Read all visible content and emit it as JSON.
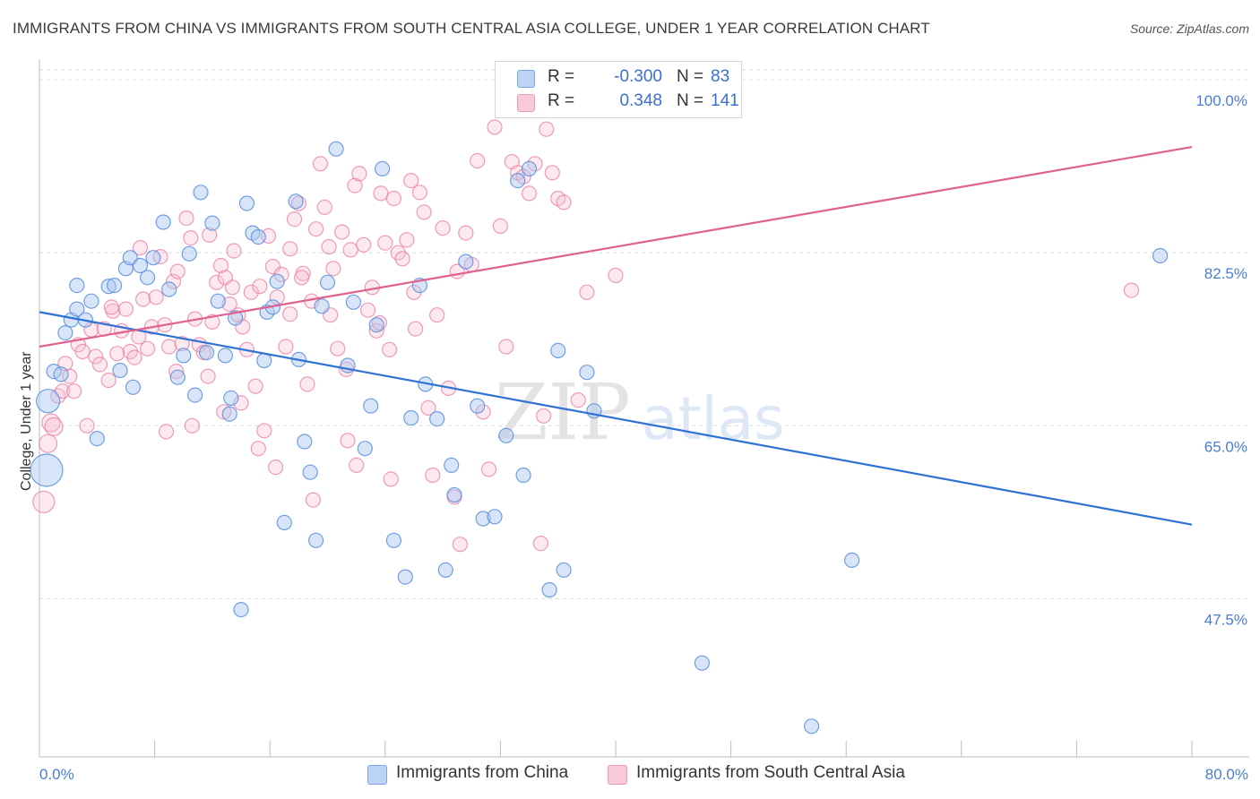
{
  "title": "IMMIGRANTS FROM CHINA VS IMMIGRANTS FROM SOUTH CENTRAL ASIA COLLEGE, UNDER 1 YEAR CORRELATION CHART",
  "source": "Source: ZipAtlas.com",
  "watermark": {
    "zip": "ZIP",
    "atlas": "atlas"
  },
  "legend": {
    "rows": [
      {
        "r_label": "R =",
        "r_value": "-0.300",
        "n_label": "N =",
        "n_value": "83",
        "color": "#8fb4ea"
      },
      {
        "r_label": "R =",
        "r_value": "0.348",
        "n_label": "N =",
        "n_value": "141",
        "color": "#f3a8c2"
      }
    ]
  },
  "bottom_legend": {
    "china": "Immigrants from China",
    "south_central_asia": "Immigrants from South Central Asia"
  },
  "chart_data": {
    "type": "scatter",
    "title": "IMMIGRANTS FROM CHINA VS IMMIGRANTS FROM SOUTH CENTRAL ASIA COLLEGE, UNDER 1 YEAR CORRELATION CHART",
    "xlabel": "",
    "ylabel": "College, Under 1 year",
    "xlim": [
      0,
      80
    ],
    "ylim": [
      31.5,
      101
    ],
    "x_tick_labels": [
      "0.0%",
      "80.0%"
    ],
    "y_ticks": [
      47.5,
      65.0,
      82.5,
      100.0
    ],
    "y_tick_labels": [
      "47.5%",
      "65.0%",
      "82.5%",
      "100.0%"
    ],
    "grid": true,
    "legend_position": "top-center",
    "colors": {
      "china": "#5b8fdc",
      "china_fill": "#a9c5f0",
      "south_central_asia": "#e87ca2",
      "south_central_asia_fill": "#f5bcd0",
      "china_line": "#2f72d6",
      "sca_line": "#e0608e"
    },
    "series": [
      {
        "name": "Immigrants from China",
        "trend": {
          "x": [
            0,
            80
          ],
          "y": [
            76.5,
            55.0
          ]
        },
        "points": [
          [
            0.5,
            60.5
          ],
          [
            0.6,
            67.5
          ],
          [
            1.0,
            70.5
          ],
          [
            1.5,
            70.2
          ],
          [
            1.8,
            74.4
          ],
          [
            2.2,
            75.7
          ],
          [
            2.6,
            76.8
          ],
          [
            2.6,
            79.2
          ],
          [
            3.2,
            75.7
          ],
          [
            3.6,
            77.6
          ],
          [
            4.0,
            63.7
          ],
          [
            4.8,
            79.1
          ],
          [
            5.2,
            79.2
          ],
          [
            5.6,
            70.6
          ],
          [
            6.0,
            80.9
          ],
          [
            6.3,
            82.0
          ],
          [
            6.5,
            68.9
          ],
          [
            7.0,
            81.2
          ],
          [
            7.5,
            80.0
          ],
          [
            7.9,
            82.0
          ],
          [
            8.6,
            85.6
          ],
          [
            9.0,
            78.8
          ],
          [
            9.6,
            69.9
          ],
          [
            10.0,
            72.1
          ],
          [
            10.4,
            82.4
          ],
          [
            10.8,
            68.1
          ],
          [
            11.2,
            88.6
          ],
          [
            11.6,
            72.4
          ],
          [
            12.0,
            85.5
          ],
          [
            12.4,
            77.6
          ],
          [
            12.9,
            72.1
          ],
          [
            13.3,
            67.8
          ],
          [
            13.6,
            75.9
          ],
          [
            14.0,
            46.4
          ],
          [
            14.4,
            87.5
          ],
          [
            14.8,
            84.5
          ],
          [
            15.2,
            84.1
          ],
          [
            15.6,
            71.6
          ],
          [
            15.8,
            76.5
          ],
          [
            16.2,
            77.0
          ],
          [
            16.5,
            79.6
          ],
          [
            17.0,
            55.2
          ],
          [
            17.8,
            87.7
          ],
          [
            18.0,
            71.7
          ],
          [
            18.4,
            63.4
          ],
          [
            18.8,
            60.3
          ],
          [
            19.2,
            53.4
          ],
          [
            19.6,
            77.1
          ],
          [
            20.0,
            79.5
          ],
          [
            20.6,
            93.0
          ],
          [
            21.4,
            71.1
          ],
          [
            21.8,
            77.5
          ],
          [
            22.6,
            62.7
          ],
          [
            23.0,
            67.0
          ],
          [
            23.4,
            75.2
          ],
          [
            23.8,
            91.0
          ],
          [
            24.6,
            53.4
          ],
          [
            25.4,
            49.7
          ],
          [
            25.8,
            65.8
          ],
          [
            26.4,
            79.2
          ],
          [
            26.8,
            69.2
          ],
          [
            27.6,
            65.7
          ],
          [
            28.2,
            50.4
          ],
          [
            28.6,
            61.0
          ],
          [
            28.8,
            58.0
          ],
          [
            29.6,
            81.6
          ],
          [
            30.4,
            67.0
          ],
          [
            30.8,
            55.6
          ],
          [
            31.6,
            55.8
          ],
          [
            32.4,
            64.0
          ],
          [
            33.2,
            89.8
          ],
          [
            33.6,
            60.0
          ],
          [
            34.0,
            91.0
          ],
          [
            35.4,
            48.4
          ],
          [
            36.4,
            50.4
          ],
          [
            38.0,
            70.4
          ],
          [
            46.0,
            41.0
          ],
          [
            53.6,
            34.6
          ],
          [
            56.4,
            51.4
          ],
          [
            77.8,
            82.2
          ],
          [
            38.5,
            66.5
          ],
          [
            13.2,
            66.2
          ],
          [
            36.0,
            72.6
          ]
        ]
      },
      {
        "name": "Immigrants from South Central Asia",
        "trend": {
          "x": [
            0,
            80
          ],
          "y": [
            73.0,
            93.2
          ]
        },
        "points": [
          [
            0.3,
            57.3
          ],
          [
            0.6,
            63.2
          ],
          [
            0.8,
            65.3
          ],
          [
            1.0,
            64.9
          ],
          [
            1.3,
            68.0
          ],
          [
            1.6,
            68.5
          ],
          [
            1.8,
            71.3
          ],
          [
            2.1,
            70.0
          ],
          [
            2.4,
            68.5
          ],
          [
            2.7,
            73.2
          ],
          [
            3.0,
            72.5
          ],
          [
            3.3,
            65.0
          ],
          [
            3.6,
            74.7
          ],
          [
            3.9,
            72.0
          ],
          [
            4.2,
            71.2
          ],
          [
            4.5,
            74.8
          ],
          [
            4.8,
            69.6
          ],
          [
            5.1,
            76.6
          ],
          [
            5.4,
            72.3
          ],
          [
            5.7,
            74.6
          ],
          [
            6.0,
            76.8
          ],
          [
            6.3,
            72.5
          ],
          [
            6.6,
            71.9
          ],
          [
            6.9,
            74.0
          ],
          [
            7.2,
            77.8
          ],
          [
            7.5,
            72.8
          ],
          [
            7.8,
            75.0
          ],
          [
            8.1,
            78.0
          ],
          [
            8.4,
            82.1
          ],
          [
            8.7,
            75.2
          ],
          [
            9.0,
            73.0
          ],
          [
            9.3,
            79.6
          ],
          [
            9.6,
            80.6
          ],
          [
            9.9,
            73.3
          ],
          [
            10.2,
            86.0
          ],
          [
            10.5,
            84.0
          ],
          [
            10.8,
            75.8
          ],
          [
            11.1,
            73.2
          ],
          [
            11.4,
            72.4
          ],
          [
            11.7,
            70.0
          ],
          [
            12.0,
            75.5
          ],
          [
            12.3,
            79.5
          ],
          [
            12.6,
            81.2
          ],
          [
            12.9,
            80.0
          ],
          [
            13.2,
            77.3
          ],
          [
            13.5,
            82.7
          ],
          [
            13.8,
            76.2
          ],
          [
            14.1,
            75.0
          ],
          [
            14.4,
            72.7
          ],
          [
            14.7,
            78.5
          ],
          [
            15.0,
            69.0
          ],
          [
            15.3,
            79.1
          ],
          [
            15.6,
            64.5
          ],
          [
            15.9,
            84.2
          ],
          [
            16.2,
            81.1
          ],
          [
            16.5,
            78.0
          ],
          [
            16.8,
            80.3
          ],
          [
            17.1,
            73.0
          ],
          [
            17.4,
            76.3
          ],
          [
            17.7,
            85.9
          ],
          [
            18.0,
            87.5
          ],
          [
            18.3,
            80.4
          ],
          [
            18.6,
            69.2
          ],
          [
            18.9,
            77.6
          ],
          [
            19.2,
            84.9
          ],
          [
            19.5,
            91.5
          ],
          [
            19.8,
            87.1
          ],
          [
            20.1,
            83.1
          ],
          [
            20.4,
            80.9
          ],
          [
            20.7,
            72.8
          ],
          [
            21.0,
            84.6
          ],
          [
            21.3,
            70.7
          ],
          [
            21.6,
            82.8
          ],
          [
            21.9,
            89.3
          ],
          [
            22.2,
            90.5
          ],
          [
            22.5,
            83.3
          ],
          [
            22.8,
            76.7
          ],
          [
            23.1,
            79.0
          ],
          [
            23.4,
            74.6
          ],
          [
            23.7,
            88.5
          ],
          [
            24.0,
            83.5
          ],
          [
            24.3,
            72.7
          ],
          [
            24.6,
            88.0
          ],
          [
            24.9,
            82.5
          ],
          [
            25.2,
            81.9
          ],
          [
            25.5,
            83.8
          ],
          [
            25.8,
            89.8
          ],
          [
            26.1,
            74.8
          ],
          [
            26.4,
            88.6
          ],
          [
            26.7,
            86.6
          ],
          [
            27.0,
            66.8
          ],
          [
            27.3,
            60.0
          ],
          [
            27.6,
            76.2
          ],
          [
            28.0,
            85.0
          ],
          [
            28.4,
            68.8
          ],
          [
            28.8,
            57.8
          ],
          [
            29.2,
            53.0
          ],
          [
            29.6,
            84.5
          ],
          [
            30.0,
            81.3
          ],
          [
            30.4,
            91.8
          ],
          [
            30.8,
            66.4
          ],
          [
            31.2,
            60.6
          ],
          [
            31.6,
            95.2
          ],
          [
            32.0,
            85.2
          ],
          [
            32.4,
            73.0
          ],
          [
            32.8,
            91.7
          ],
          [
            33.2,
            90.6
          ],
          [
            33.6,
            90.2
          ],
          [
            34.0,
            88.5
          ],
          [
            34.4,
            91.5
          ],
          [
            34.8,
            53.1
          ],
          [
            35.0,
            66.0
          ],
          [
            35.2,
            95.0
          ],
          [
            35.6,
            90.6
          ],
          [
            36.0,
            88.0
          ],
          [
            36.4,
            87.6
          ],
          [
            37.4,
            67.6
          ],
          [
            38.0,
            78.5
          ],
          [
            40.0,
            80.2
          ],
          [
            75.8,
            78.7
          ],
          [
            14.0,
            67.3
          ],
          [
            12.8,
            66.4
          ],
          [
            19.0,
            57.5
          ],
          [
            15.2,
            62.7
          ],
          [
            16.4,
            60.8
          ],
          [
            24.4,
            59.6
          ],
          [
            21.4,
            63.5
          ],
          [
            10.6,
            65.0
          ],
          [
            8.8,
            64.4
          ],
          [
            22.0,
            61.0
          ],
          [
            18.2,
            80.0
          ],
          [
            26.0,
            78.5
          ],
          [
            29.0,
            80.6
          ],
          [
            20.2,
            76.2
          ],
          [
            23.6,
            75.4
          ],
          [
            17.4,
            82.9
          ],
          [
            11.8,
            84.3
          ],
          [
            13.4,
            79.0
          ],
          [
            5.0,
            77.0
          ],
          [
            7.0,
            83.0
          ],
          [
            9.5,
            70.5
          ]
        ]
      }
    ]
  }
}
